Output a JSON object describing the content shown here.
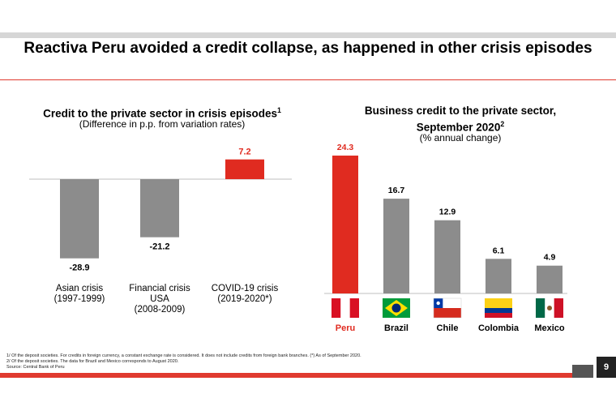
{
  "slide": {
    "title": "Reactiva Peru avoided a credit collapse, as happened in other crisis episodes",
    "page_number": "9",
    "footnotes": [
      "1/ Of the deposit societies. For credits in foreign currency, a constant exchange rate is considered. It does not include credits from foreign bank branches. (*) As of September 2020.",
      "2/ Of the deposit societies. The data for Brazil and Mexico corresponds to August 2020.",
      "Source: Central Bank of Peru"
    ]
  },
  "left_chart": {
    "title": "Credit to the private sector in crisis episodes",
    "title_sup": "1",
    "subtitle": "(Difference in p.p. from variation rates)"
  },
  "right_chart": {
    "title_line1": "Business credit to the private sector,",
    "title_line2": "September 2020",
    "title_sup": "2",
    "subtitle": "(% annual change)"
  },
  "colors": {
    "accent": "#e02b20",
    "bar_gray": "#8c8c8c",
    "axis": "#bfbfbf"
  },
  "chart_data": [
    {
      "type": "bar",
      "title": "Credit to the private sector in crisis episodes",
      "subtitle": "(Difference in p.p. from variation rates)",
      "categories": [
        [
          "Asian crisis",
          "(1997-1999)"
        ],
        [
          "Financial crisis",
          "USA",
          "(2008-2009)"
        ],
        [
          "COVID-19 crisis",
          "(2019-2020*)"
        ]
      ],
      "values": [
        -28.9,
        -21.2,
        7.2
      ],
      "data_labels": [
        "-28.9",
        "-21.2",
        "7.2"
      ],
      "highlight_index": 2,
      "ylim": [
        -30,
        8
      ],
      "grid": false
    },
    {
      "type": "bar",
      "title": "Business credit to the private sector, September 2020",
      "subtitle": "(% annual change)",
      "categories": [
        "Peru",
        "Brazil",
        "Chile",
        "Colombia",
        "Mexico"
      ],
      "values": [
        24.3,
        16.7,
        12.9,
        6.1,
        4.9
      ],
      "data_labels": [
        "24.3",
        "16.7",
        "12.9",
        "6.1",
        "4.9"
      ],
      "flag_icons": [
        "peru-flag-icon",
        "brazil-flag-icon",
        "chile-flag-icon",
        "colombia-flag-icon",
        "mexico-flag-icon"
      ],
      "highlight_index": 0,
      "ylim": [
        0,
        25
      ],
      "grid": false
    }
  ]
}
